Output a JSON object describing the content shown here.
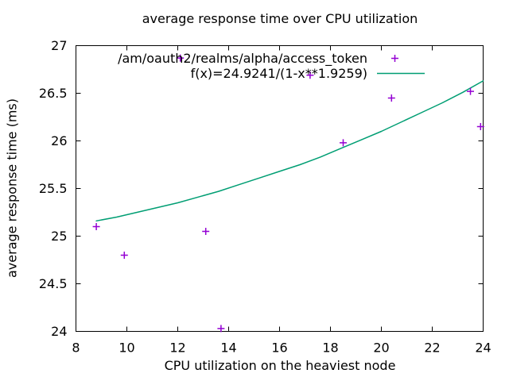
{
  "chart_data": {
    "type": "scatter",
    "title": "average response time over CPU utilization",
    "xlabel": "CPU utilization on the heaviest node",
    "ylabel": "average response time (ms)",
    "xlim": [
      8,
      24
    ],
    "ylim": [
      24,
      27
    ],
    "xticks": [
      8,
      10,
      12,
      14,
      16,
      18,
      20,
      22,
      24
    ],
    "yticks": [
      24,
      24.5,
      25,
      25.5,
      26,
      26.5,
      27
    ],
    "grid": false,
    "legend": {
      "position": "top-center-inside",
      "alignment": "right"
    },
    "series": [
      {
        "name": "/am/oauth2/realms/alpha/access_token",
        "type": "points",
        "marker": "plus",
        "color": "#9400d3",
        "points": [
          [
            8.8,
            25.1
          ],
          [
            9.9,
            24.8
          ],
          [
            12.1,
            26.87
          ],
          [
            13.1,
            25.05
          ],
          [
            13.7,
            24.03
          ],
          [
            17.2,
            26.69
          ],
          [
            18.5,
            25.98
          ],
          [
            20.4,
            26.45
          ],
          [
            23.5,
            26.52
          ],
          [
            23.9,
            26.15
          ]
        ]
      },
      {
        "name": "f(x)=24.9241/(1-x**1.9259)",
        "type": "line",
        "color": "#009e73",
        "points": [
          [
            8.8,
            25.16
          ],
          [
            9.6,
            25.2
          ],
          [
            10.4,
            25.25
          ],
          [
            11.2,
            25.3
          ],
          [
            12.0,
            25.35
          ],
          [
            12.8,
            25.41
          ],
          [
            13.6,
            25.47
          ],
          [
            14.4,
            25.54
          ],
          [
            15.2,
            25.61
          ],
          [
            16.0,
            25.68
          ],
          [
            16.8,
            25.75
          ],
          [
            17.6,
            25.83
          ],
          [
            18.4,
            25.92
          ],
          [
            19.2,
            26.01
          ],
          [
            20.0,
            26.1
          ],
          [
            20.8,
            26.2
          ],
          [
            21.6,
            26.3
          ],
          [
            22.4,
            26.4
          ],
          [
            23.2,
            26.51
          ],
          [
            24.0,
            26.63
          ]
        ]
      }
    ],
    "axis_color": "#000000",
    "text_color": "#000000",
    "background_color": "#ffffff"
  }
}
